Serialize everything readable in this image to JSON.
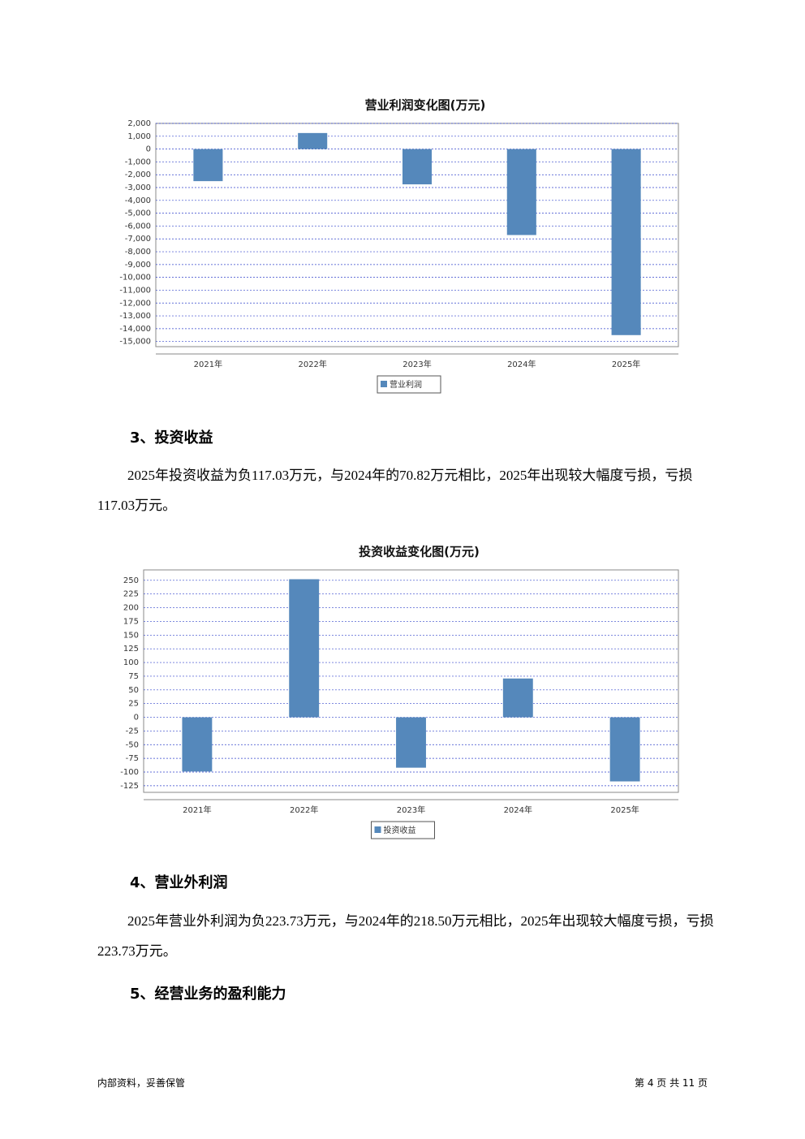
{
  "chart_data": [
    {
      "type": "bar",
      "title": "营业利润变化图(万元)",
      "categories": [
        "2021年",
        "2022年",
        "2023年",
        "2024年",
        "2025年"
      ],
      "series": [
        {
          "name": "营业利润",
          "color": "#5588bb",
          "values": [
            -2500,
            1250,
            -2750,
            -6700,
            -14500
          ]
        }
      ],
      "ylim": [
        -15400,
        2000
      ],
      "yticks": [
        {
          "value": 2000,
          "label": "2,000"
        },
        {
          "value": 1000,
          "label": "1,000"
        },
        0,
        {
          "value": -1000,
          "label": "-1,000"
        },
        {
          "value": -2000,
          "label": "-2,000"
        },
        {
          "value": -3000,
          "label": "-3,000"
        },
        {
          "value": -4000,
          "label": "-4,000"
        },
        {
          "value": -5000,
          "label": "-5,000"
        },
        {
          "value": -6000,
          "label": "-6,000"
        },
        {
          "value": -7000,
          "label": "-7,000"
        },
        {
          "value": -8000,
          "label": "-8,000"
        },
        {
          "value": -9000,
          "label": "-9,000"
        },
        {
          "value": -10000,
          "label": "-10,000"
        },
        {
          "value": -11000,
          "label": "-11,000"
        },
        {
          "value": -12000,
          "label": "-12,000"
        },
        {
          "value": -13000,
          "label": "-13,000"
        },
        {
          "value": -14000,
          "label": "-14,000"
        },
        {
          "value": -15000,
          "label": "-15,000"
        }
      ],
      "grid": true
    },
    {
      "type": "bar",
      "title": "投资收益变化图(万元)",
      "categories": [
        "2021年",
        "2022年",
        "2023年",
        "2024年",
        "2025年"
      ],
      "series": [
        {
          "name": "投资收益",
          "color": "#5588bb",
          "values": [
            -99,
            252,
            -92,
            70.82,
            -117.03
          ]
        }
      ],
      "ylim": [
        -137,
        269
      ],
      "yticks": [
        250,
        225,
        200,
        175,
        150,
        125,
        100,
        75,
        50,
        25,
        0,
        -25,
        -50,
        -75,
        -100,
        -125
      ],
      "grid": true
    }
  ],
  "sections": [
    {
      "heading": "3、投资收益",
      "text": "2025年投资收益为负117.03万元，与2024年的70.82万元相比，2025年出现较大幅度亏损，亏损117.03万元。"
    },
    {
      "heading": "4、营业外利润",
      "text": "2025年营业外利润为负223.73万元，与2024年的218.50万元相比，2025年出现较大幅度亏损，亏损223.73万元。"
    },
    {
      "heading": "5、经营业务的盈利能力"
    }
  ],
  "footer": {
    "left": "内部资料，妥善保管",
    "right": "第 4 页 共 11 页"
  }
}
